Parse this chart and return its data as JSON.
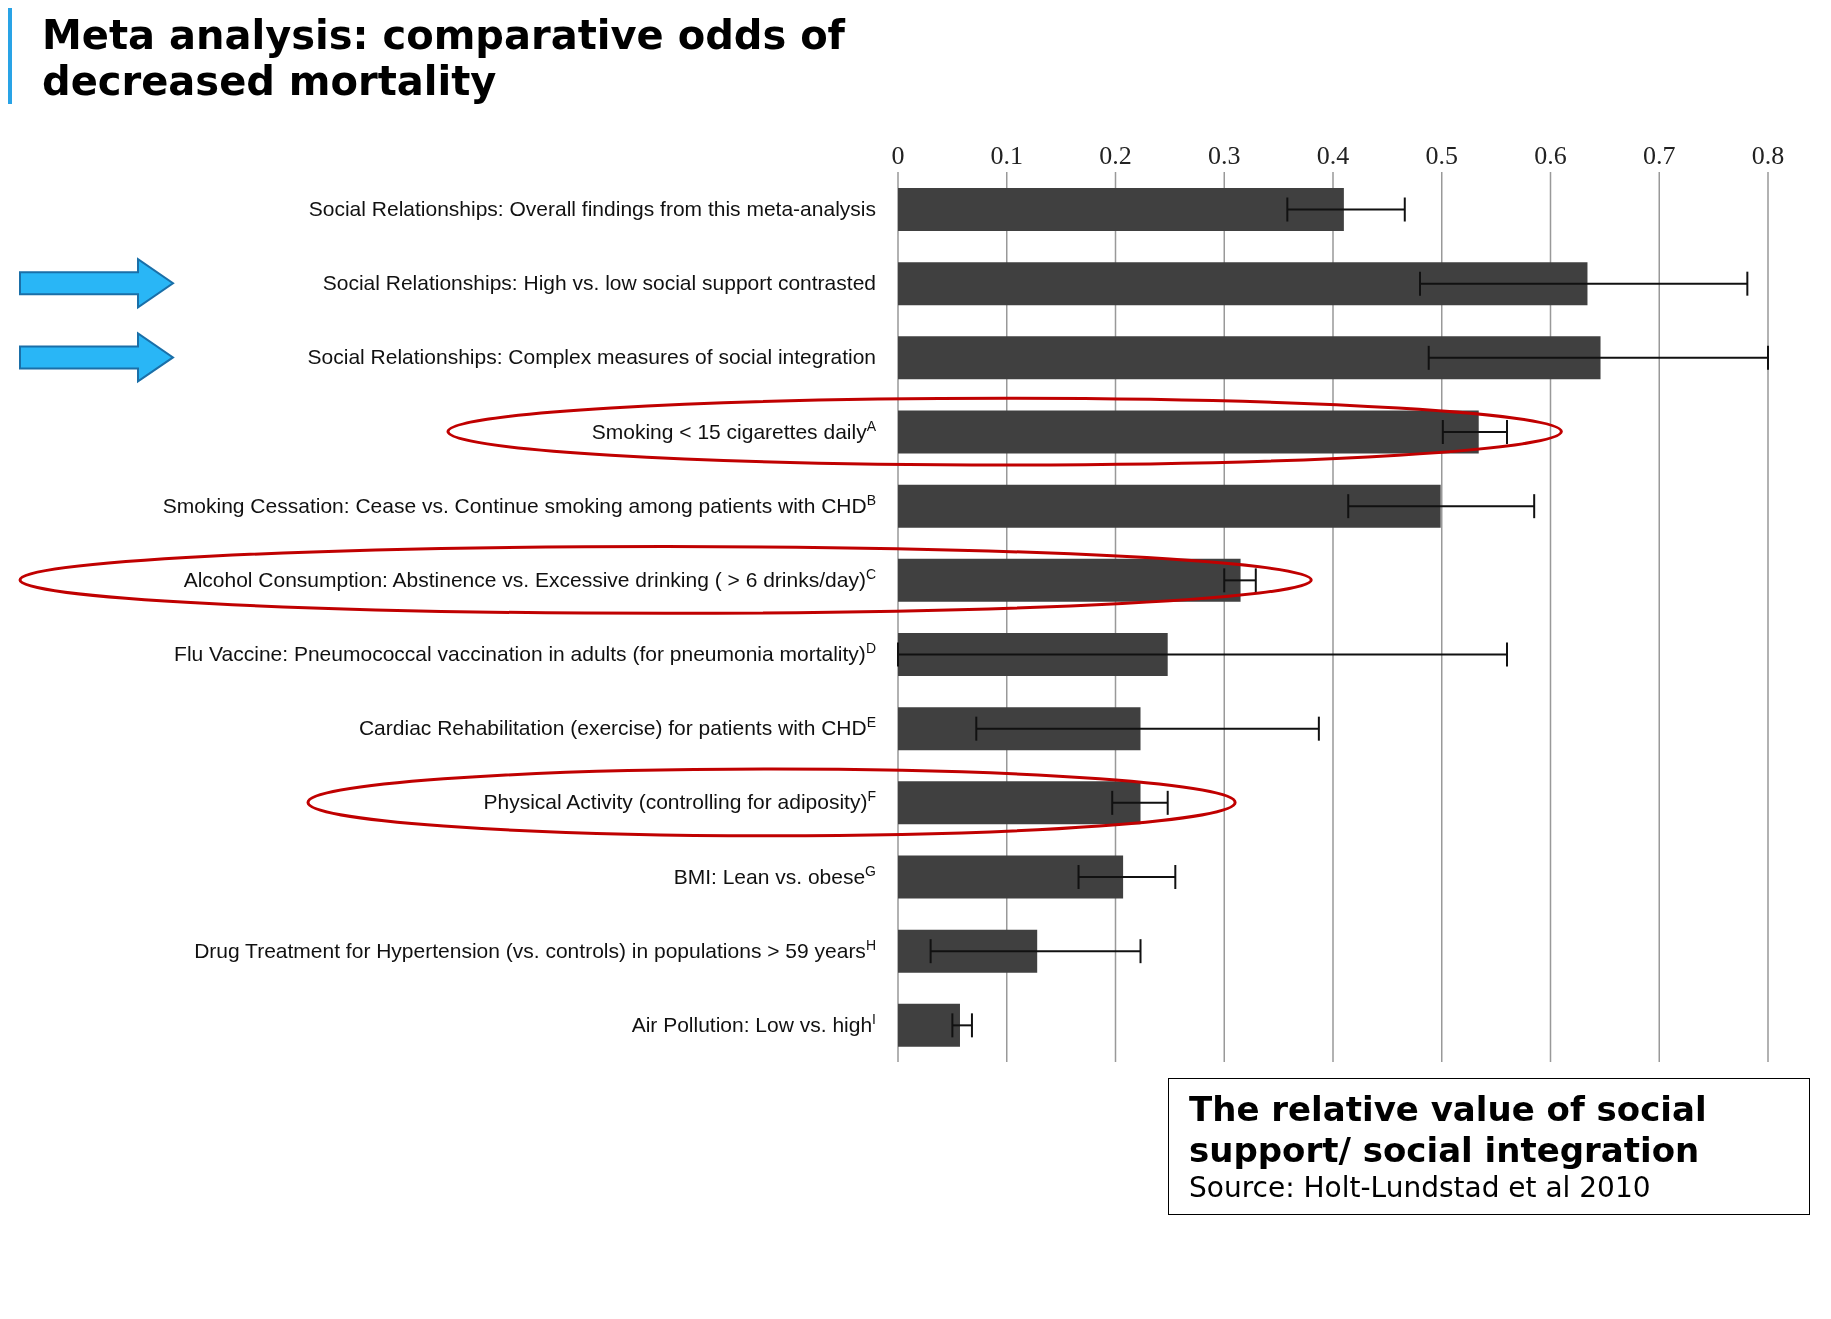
{
  "chart_data": {
    "type": "bar",
    "orientation": "horizontal",
    "title": "Meta analysis: comparative odds of decreased mortality",
    "categories": [
      "Social Relationships: Overall findings from this meta-analysis",
      "Social Relationships: High vs. low social support contrasted",
      "Social Relationships: Complex measures of social integration",
      "Smoking < 15 cigarettes daily$^{A}$",
      "Smoking Cessation: Cease vs. Continue smoking among patients with CHD$^{B}$",
      "Alcohol Consumption: Abstinence vs. Excessive drinking ( > 6 drinks/day)$^{C}$",
      "Flu Vaccine: Pneumococcal vaccination in adults (for pneumonia mortality)$^{D}$",
      "Cardiac Rehabilitation (exercise) for patients with CHD$^{E}$",
      "Physical Activity (controlling for adiposity)$^{F}$",
      "BMI: Lean vs. obese$^{G}$",
      "Drug Treatment for Hypertension (vs. controls) in populations > 59 years$^{H}$",
      "Air Pollution: Low vs. high$^{I}$"
    ],
    "values": [
      0.41,
      0.634,
      0.646,
      0.534,
      0.499,
      0.315,
      0.248,
      0.223,
      0.223,
      0.207,
      0.128,
      0.057
    ],
    "errors": [
      [
        0.358,
        0.466
      ],
      [
        0.48,
        0.781
      ],
      [
        0.488,
        0.8
      ],
      [
        0.501,
        0.56
      ],
      [
        0.414,
        0.585
      ],
      [
        0.3,
        0.329
      ],
      [
        0.0,
        0.56
      ],
      [
        0.072,
        0.387
      ],
      [
        0.197,
        0.248
      ],
      [
        0.166,
        0.255
      ],
      [
        0.03,
        0.223
      ],
      [
        0.05,
        0.068
      ]
    ],
    "color": "#404040",
    "xlim": [
      0,
      0.8
    ],
    "xticks": [
      0,
      0.1,
      0.2,
      0.3,
      0.4,
      0.5,
      0.6,
      0.7,
      0.8
    ],
    "grid": "x",
    "annotations": [
      "The relative value of social support/ social integration",
      "Source: Holt-Lundstad et al 2010"
    ]
  }
}
